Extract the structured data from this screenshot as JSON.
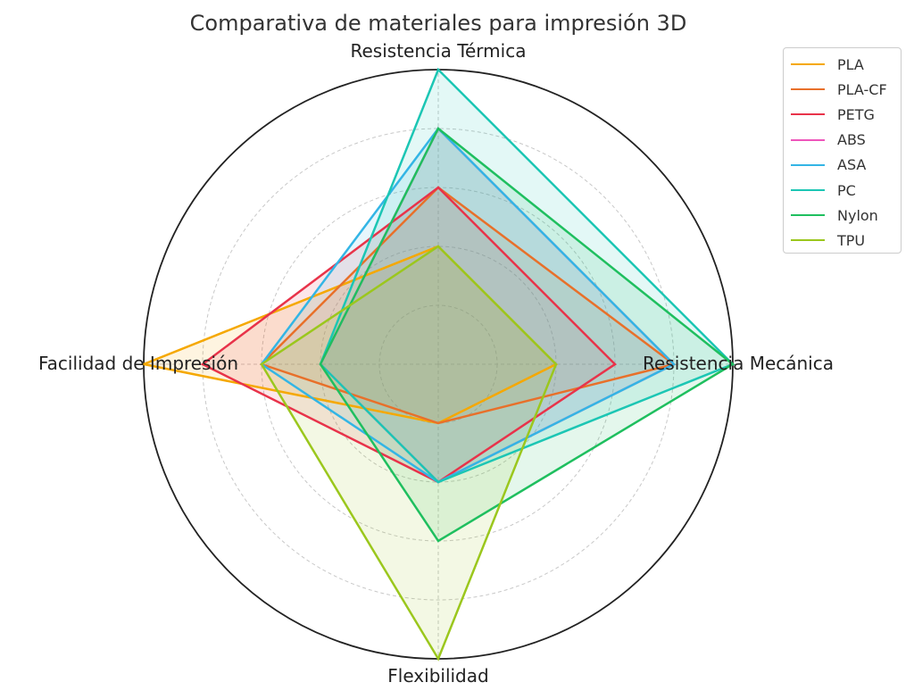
{
  "chart_data": {
    "type": "radar",
    "title": "Comparativa de materiales para impresión 3D",
    "axes": [
      "Resistencia Térmica",
      "Resistencia Mecánica",
      "Flexibilidad",
      "Facilidad de Impresión"
    ],
    "rmax": 5,
    "grid": true,
    "legend_position": "top-right",
    "series": [
      {
        "name": "PLA",
        "color": "#f5a800",
        "values": [
          2,
          2,
          1,
          5
        ]
      },
      {
        "name": "PLA-CF",
        "color": "#e8702a",
        "values": [
          3,
          4,
          1,
          3
        ]
      },
      {
        "name": "PETG",
        "color": "#e8334a",
        "values": [
          3,
          3,
          2,
          4
        ]
      },
      {
        "name": "ABS",
        "color": "#ee55bb",
        "values": [
          4,
          4,
          2,
          2
        ]
      },
      {
        "name": "ASA",
        "color": "#33b5e5",
        "values": [
          4,
          4,
          2,
          3
        ]
      },
      {
        "name": "PC",
        "color": "#1cc6b4",
        "values": [
          5,
          5,
          2,
          2
        ]
      },
      {
        "name": "Nylon",
        "color": "#1fbf5f",
        "values": [
          4,
          5,
          3,
          2
        ]
      },
      {
        "name": "TPU",
        "color": "#9bc71d",
        "values": [
          2,
          2,
          5,
          3
        ]
      }
    ]
  }
}
